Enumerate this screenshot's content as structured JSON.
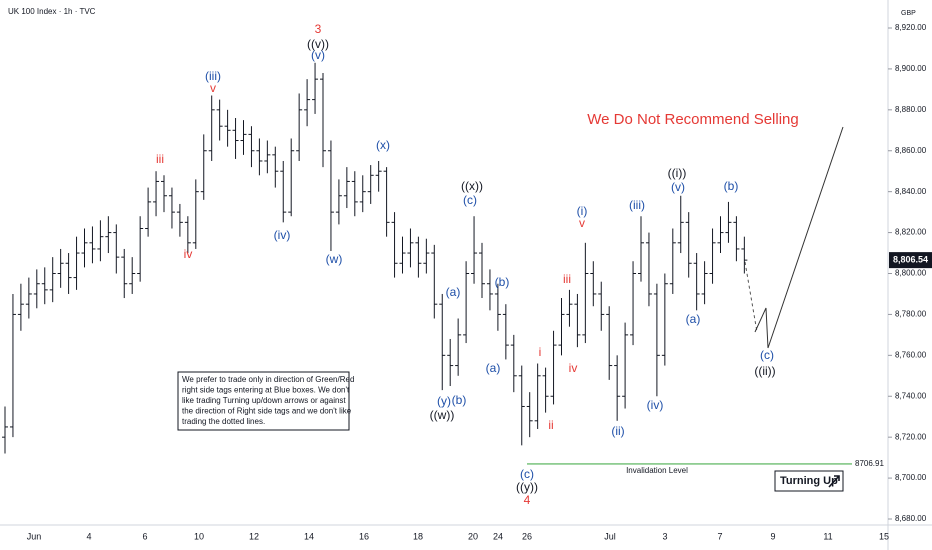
{
  "chart_data": {
    "type": "ohlc",
    "title": "UK 100 Index · 1h · TVC",
    "currency": "GBP",
    "categories": [
      "Jun",
      "4",
      "6",
      "10",
      "12",
      "14",
      "16",
      "18",
      "20",
      "24",
      "26",
      "Jul",
      "3",
      "7",
      "9",
      "11",
      "15"
    ],
    "ylim": [
      8680,
      8920
    ],
    "yticks": [
      {
        "value": 8680,
        "label": "8,680.00"
      },
      {
        "value": 8700,
        "label": "8,700.00"
      },
      {
        "value": 8720,
        "label": "8,720.00"
      },
      {
        "value": 8740,
        "label": "8,740.00"
      },
      {
        "value": 8760,
        "label": "8,760.00"
      },
      {
        "value": 8780,
        "label": "8,780.00"
      },
      {
        "value": 8800,
        "label": "8,800.00"
      },
      {
        "value": 8820,
        "label": "8,820.00"
      },
      {
        "value": 8840,
        "label": "8,840.00"
      },
      {
        "value": 8860,
        "label": "8,860.00"
      },
      {
        "value": 8880,
        "label": "8,880.00"
      },
      {
        "value": 8900,
        "label": "8,900.00"
      },
      {
        "value": 8920,
        "label": "8,920.00"
      }
    ],
    "color": "#131722",
    "open": [
      8720,
      8725,
      8780,
      8785,
      8790,
      8795,
      8792,
      8800,
      8805,
      8798,
      8810,
      8815,
      8812,
      8818,
      8820,
      8808,
      8795,
      8800,
      8822,
      8835,
      8845,
      8838,
      8830,
      8825,
      8815,
      8840,
      8860,
      8880,
      8872,
      8870,
      8865,
      8868,
      8860,
      8855,
      8858,
      8850,
      8830,
      8860,
      8880,
      8885,
      8895,
      8860,
      8830,
      8838,
      8845,
      8835,
      8840,
      8848,
      8850,
      8825,
      8805,
      8810,
      8815,
      8805,
      8810,
      8785,
      8760,
      8755,
      8770,
      8800,
      8810,
      8795,
      8790,
      8780,
      8765,
      8750,
      8735,
      8728,
      8750,
      8740,
      8765,
      8780,
      8785,
      8770,
      8800,
      8790,
      8780,
      8755,
      8740,
      8770,
      8800,
      8815,
      8790,
      8760,
      8795,
      8815,
      8825,
      8805,
      8790,
      8800,
      8815,
      8820,
      8825,
      8812
    ],
    "high": [
      8735,
      8790,
      8795,
      8798,
      8802,
      8803,
      8808,
      8812,
      8810,
      8818,
      8822,
      8823,
      8826,
      8828,
      8824,
      8812,
      8808,
      8828,
      8842,
      8850,
      8848,
      8842,
      8834,
      8828,
      8846,
      8868,
      8887,
      8885,
      8880,
      8876,
      8875,
      8872,
      8866,
      8865,
      8862,
      8855,
      8866,
      8888,
      8895,
      8903,
      8898,
      8865,
      8846,
      8852,
      8850,
      8848,
      8853,
      8855,
      8852,
      8830,
      8818,
      8822,
      8818,
      8817,
      8814,
      8790,
      8768,
      8778,
      8806,
      8828,
      8815,
      8802,
      8795,
      8785,
      8770,
      8755,
      8742,
      8756,
      8754,
      8772,
      8788,
      8792,
      8790,
      8815,
      8806,
      8796,
      8784,
      8760,
      8776,
      8806,
      8828,
      8820,
      8795,
      8800,
      8822,
      8838,
      8830,
      8810,
      8806,
      8822,
      8828,
      8835,
      8828,
      8818
    ],
    "low": [
      8712,
      8720,
      8772,
      8778,
      8783,
      8785,
      8786,
      8793,
      8790,
      8792,
      8803,
      8805,
      8806,
      8810,
      8800,
      8788,
      8790,
      8796,
      8818,
      8828,
      8830,
      8822,
      8818,
      8810,
      8812,
      8836,
      8855,
      8865,
      8862,
      8856,
      8858,
      8852,
      8848,
      8849,
      8842,
      8825,
      8828,
      8855,
      8872,
      8878,
      8852,
      8811,
      8824,
      8832,
      8828,
      8830,
      8834,
      8840,
      8818,
      8798,
      8800,
      8803,
      8798,
      8800,
      8778,
      8743,
      8745,
      8750,
      8766,
      8795,
      8788,
      8782,
      8772,
      8758,
      8742,
      8716,
      8720,
      8724,
      8732,
      8736,
      8760,
      8774,
      8764,
      8766,
      8784,
      8772,
      8748,
      8728,
      8734,
      8765,
      8796,
      8784,
      8740,
      8755,
      8790,
      8810,
      8798,
      8782,
      8785,
      8795,
      8810,
      8815,
      8806,
      8800
    ],
    "close": [
      8725,
      8780,
      8785,
      8790,
      8795,
      8792,
      8800,
      8805,
      8798,
      8810,
      8815,
      8812,
      8818,
      8820,
      8808,
      8795,
      8800,
      8822,
      8835,
      8845,
      8838,
      8830,
      8825,
      8815,
      8840,
      8860,
      8880,
      8872,
      8870,
      8865,
      8868,
      8860,
      8855,
      8858,
      8850,
      8830,
      8860,
      8880,
      8885,
      8895,
      8860,
      8830,
      8838,
      8845,
      8835,
      8840,
      8848,
      8850,
      8825,
      8805,
      8810,
      8815,
      8805,
      8810,
      8785,
      8760,
      8755,
      8770,
      8800,
      8810,
      8795,
      8790,
      8780,
      8765,
      8750,
      8735,
      8728,
      8750,
      8740,
      8765,
      8780,
      8785,
      8770,
      8800,
      8790,
      8780,
      8755,
      8740,
      8770,
      8800,
      8815,
      8790,
      8760,
      8795,
      8815,
      8825,
      8805,
      8790,
      8800,
      8815,
      8820,
      8825,
      8812,
      8806.54
    ],
    "last_price": {
      "value": 8806.54,
      "label": "8,806.54"
    },
    "invalidation": {
      "value": 8706.91,
      "label": "8706.91",
      "text": "Invalidation Level",
      "color": "#4caf50"
    },
    "headline": {
      "text": "We Do Not Recommend Selling",
      "color": "#e53935"
    },
    "badge": "Turning Up",
    "note": [
      "We prefer to trade only in direction of Green/Red",
      "right side tags entering at Blue boxes. We don't",
      "like trading Turning up/down arrows or against",
      "the direction of Right side tags and we don't like",
      "trading the dotted lines."
    ],
    "annotations": [
      {
        "text": "3",
        "color": "#e53935"
      },
      {
        "text": "((v))",
        "color": "#131722"
      },
      {
        "text": "(v)",
        "color": "#1e4fa8"
      },
      {
        "text": "(iii)",
        "color": "#1e4fa8"
      },
      {
        "text": "v",
        "color": "#e53935"
      },
      {
        "text": "iii",
        "color": "#e53935"
      },
      {
        "text": "iv",
        "color": "#e53935"
      },
      {
        "text": "(iv)",
        "color": "#1e4fa8"
      },
      {
        "text": "(w)",
        "color": "#1e4fa8"
      },
      {
        "text": "(x)",
        "color": "#1e4fa8"
      },
      {
        "text": "((x))",
        "color": "#131722"
      },
      {
        "text": "(c)",
        "color": "#1e4fa8"
      },
      {
        "text": "(a)",
        "color": "#1e4fa8"
      },
      {
        "text": "(b)",
        "color": "#1e4fa8"
      },
      {
        "text": "(a)",
        "color": "#1e4fa8"
      },
      {
        "text": "(y)",
        "color": "#1e4fa8"
      },
      {
        "text": "(b)",
        "color": "#1e4fa8"
      },
      {
        "text": "((w))",
        "color": "#131722"
      },
      {
        "text": "(c)",
        "color": "#1e4fa8"
      },
      {
        "text": "((y))",
        "color": "#131722"
      },
      {
        "text": "4",
        "color": "#e53935"
      },
      {
        "text": "i",
        "color": "#e53935"
      },
      {
        "text": "ii",
        "color": "#e53935"
      },
      {
        "text": "iii",
        "color": "#e53935"
      },
      {
        "text": "iv",
        "color": "#e53935"
      },
      {
        "text": "(i)",
        "color": "#1e4fa8"
      },
      {
        "text": "v",
        "color": "#e53935"
      },
      {
        "text": "(ii)",
        "color": "#1e4fa8"
      },
      {
        "text": "(iii)",
        "color": "#1e4fa8"
      },
      {
        "text": "(iv)",
        "color": "#1e4fa8"
      },
      {
        "text": "((i))",
        "color": "#131722"
      },
      {
        "text": "(v)",
        "color": "#1e4fa8"
      },
      {
        "text": "(a)",
        "color": "#1e4fa8"
      },
      {
        "text": "(b)",
        "color": "#1e4fa8"
      },
      {
        "text": "(c)",
        "color": "#1e4fa8"
      },
      {
        "text": "((ii))",
        "color": "#131722"
      }
    ]
  }
}
